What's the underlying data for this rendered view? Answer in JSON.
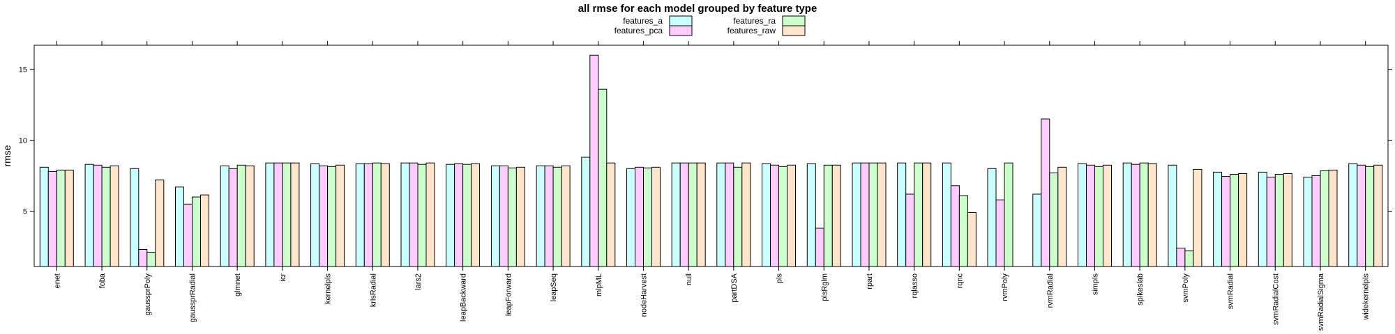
{
  "chart_data": {
    "type": "bar",
    "title": "all rmse for each model grouped by feature type",
    "xlabel": "",
    "ylabel": "rmse",
    "ylim": [
      1.1,
      16.7
    ],
    "yticks": [
      5,
      10,
      15
    ],
    "grid": false,
    "legend_position": "top-center",
    "categories": [
      "enet",
      "foba",
      "gaussprPoly",
      "gaussprRadial",
      "glmnet",
      "icr",
      "kernelpls",
      "krlsRadial",
      "lars2",
      "leapBackward",
      "leapForward",
      "leapSeq",
      "mlpML",
      "nodeHarvest",
      "null",
      "partDSA",
      "pls",
      "plsRglm",
      "rpart",
      "rqlasso",
      "rqnc",
      "rvmPoly",
      "rvmRadial",
      "simpls",
      "spikeslab",
      "svmPoly",
      "svmRadial",
      "svmRadialCost",
      "svmRadialSigma",
      "widekernelpls"
    ],
    "series": [
      {
        "name": "features_a",
        "color": "#ccffff",
        "values": [
          8.1,
          8.3,
          8.0,
          6.7,
          8.2,
          8.4,
          8.35,
          8.35,
          8.4,
          8.3,
          8.2,
          8.2,
          8.8,
          8.0,
          8.4,
          8.4,
          8.35,
          8.35,
          8.4,
          8.4,
          8.4,
          8.0,
          6.2,
          8.35,
          8.4,
          8.25,
          7.75,
          7.75,
          7.4,
          8.35
        ]
      },
      {
        "name": "features_pca",
        "color": "#ffccff",
        "values": [
          7.8,
          8.25,
          2.3,
          5.5,
          8.0,
          8.4,
          8.2,
          8.35,
          8.4,
          8.35,
          8.2,
          8.2,
          16.0,
          8.1,
          8.4,
          8.4,
          8.25,
          3.8,
          8.4,
          6.2,
          6.8,
          5.8,
          11.5,
          8.25,
          8.3,
          2.4,
          7.45,
          7.4,
          7.5,
          8.25
        ]
      },
      {
        "name": "features_ra",
        "color": "#ccffcc",
        "values": [
          7.9,
          8.1,
          2.1,
          6.0,
          8.25,
          8.4,
          8.15,
          8.4,
          8.3,
          8.3,
          8.05,
          8.1,
          13.6,
          8.05,
          8.4,
          8.1,
          8.15,
          8.25,
          8.4,
          8.4,
          6.1,
          8.4,
          7.7,
          8.15,
          8.4,
          2.2,
          7.6,
          7.6,
          7.85,
          8.15
        ]
      },
      {
        "name": "features_raw",
        "color": "#ffe5cc",
        "values": [
          7.9,
          8.2,
          7.2,
          6.15,
          8.2,
          8.4,
          8.25,
          8.35,
          8.4,
          8.35,
          8.1,
          8.2,
          8.4,
          8.1,
          8.4,
          8.4,
          8.25,
          8.25,
          8.4,
          8.4,
          4.9,
          null,
          8.1,
          8.25,
          8.35,
          7.95,
          7.65,
          7.65,
          7.9,
          8.25
        ]
      }
    ]
  }
}
